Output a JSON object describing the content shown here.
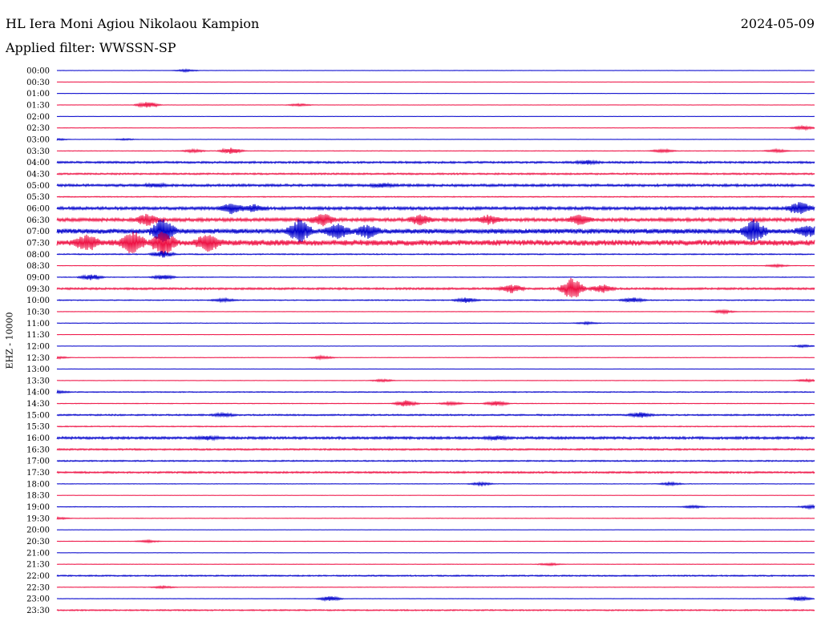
{
  "header": {
    "station": "HL Iera Moni Agiou Nikolaou Kampion",
    "date": "2024-05-09",
    "filter": "Applied filter: WWSSN-SP"
  },
  "chart_data": {
    "type": "line",
    "ylabel": "EHZ - 10000",
    "colors": {
      "even": "#0000cc",
      "odd": "#ee1144"
    },
    "rows": [
      {
        "label": "00:00",
        "noise": 0.2,
        "events": [
          [
            0.17,
            1.5
          ]
        ]
      },
      {
        "label": "00:30",
        "noise": 0.2,
        "events": []
      },
      {
        "label": "01:00",
        "noise": 0.2,
        "events": []
      },
      {
        "label": "01:30",
        "noise": 0.25,
        "events": [
          [
            0.12,
            4
          ],
          [
            0.32,
            1.5
          ]
        ]
      },
      {
        "label": "02:00",
        "noise": 0.2,
        "events": []
      },
      {
        "label": "02:30",
        "noise": 0.25,
        "events": [
          [
            0.985,
            2.5
          ]
        ]
      },
      {
        "label": "03:00",
        "noise": 0.2,
        "events": [
          [
            0.0,
            1.2
          ],
          [
            0.09,
            1
          ]
        ]
      },
      {
        "label": "03:30",
        "noise": 0.35,
        "events": [
          [
            0.23,
            4
          ],
          [
            0.18,
            2
          ],
          [
            0.8,
            2
          ],
          [
            0.95,
            2
          ]
        ]
      },
      {
        "label": "04:00",
        "noise": 1.2,
        "events": [
          [
            0.7,
            2
          ]
        ]
      },
      {
        "label": "04:30",
        "noise": 1.0,
        "events": []
      },
      {
        "label": "05:00",
        "noise": 1.5,
        "events": [
          [
            0.43,
            2
          ],
          [
            0.13,
            2
          ]
        ]
      },
      {
        "label": "05:30",
        "noise": 0.6,
        "events": []
      },
      {
        "label": "06:00",
        "noise": 1.8,
        "events": [
          [
            0.23,
            6
          ],
          [
            0.26,
            4
          ],
          [
            0.98,
            8
          ]
        ]
      },
      {
        "label": "06:30",
        "noise": 2.0,
        "events": [
          [
            0.12,
            7
          ],
          [
            0.35,
            8
          ],
          [
            0.48,
            6
          ],
          [
            0.69,
            6
          ],
          [
            0.57,
            5
          ]
        ]
      },
      {
        "label": "07:00",
        "noise": 3.0,
        "events": [
          [
            0.14,
            16
          ],
          [
            0.32,
            14
          ],
          [
            0.37,
            9
          ],
          [
            0.41,
            8
          ],
          [
            0.92,
            14
          ],
          [
            0.99,
            6
          ]
        ]
      },
      {
        "label": "07:30",
        "noise": 3.5,
        "events": [
          [
            0.04,
            9
          ],
          [
            0.1,
            14
          ],
          [
            0.14,
            16
          ],
          [
            0.2,
            10
          ]
        ]
      },
      {
        "label": "08:00",
        "noise": 0.7,
        "events": [
          [
            0.14,
            4
          ]
        ]
      },
      {
        "label": "08:30",
        "noise": 0.3,
        "events": [
          [
            0.95,
            1.5
          ]
        ]
      },
      {
        "label": "09:00",
        "noise": 0.4,
        "events": [
          [
            0.045,
            4
          ],
          [
            0.14,
            3
          ]
        ]
      },
      {
        "label": "09:30",
        "noise": 1.2,
        "events": [
          [
            0.6,
            5
          ],
          [
            0.68,
            14
          ],
          [
            0.72,
            5
          ]
        ]
      },
      {
        "label": "10:00",
        "noise": 0.6,
        "events": [
          [
            0.54,
            3
          ],
          [
            0.76,
            3
          ],
          [
            0.22,
            2
          ]
        ]
      },
      {
        "label": "10:30",
        "noise": 0.3,
        "events": [
          [
            0.88,
            2
          ]
        ]
      },
      {
        "label": "11:00",
        "noise": 0.3,
        "events": [
          [
            0.7,
            1.5
          ]
        ]
      },
      {
        "label": "11:30",
        "noise": 0.2,
        "events": []
      },
      {
        "label": "12:00",
        "noise": 0.2,
        "events": [
          [
            0.985,
            1.5
          ]
        ]
      },
      {
        "label": "12:30",
        "noise": 0.3,
        "events": [
          [
            0.35,
            2
          ],
          [
            0.0,
            1.5
          ]
        ]
      },
      {
        "label": "13:00",
        "noise": 0.2,
        "events": []
      },
      {
        "label": "13:30",
        "noise": 0.3,
        "events": [
          [
            0.43,
            1.5
          ],
          [
            0.99,
            1.5
          ]
        ]
      },
      {
        "label": "14:00",
        "noise": 0.6,
        "events": [
          [
            0.0,
            1.5
          ]
        ]
      },
      {
        "label": "14:30",
        "noise": 0.4,
        "events": [
          [
            0.46,
            4
          ],
          [
            0.52,
            2
          ],
          [
            0.58,
            3
          ]
        ]
      },
      {
        "label": "15:00",
        "noise": 0.9,
        "events": [
          [
            0.22,
            2
          ],
          [
            0.77,
            3
          ]
        ]
      },
      {
        "label": "15:30",
        "noise": 0.6,
        "events": []
      },
      {
        "label": "16:00",
        "noise": 1.5,
        "events": [
          [
            0.2,
            2
          ],
          [
            0.58,
            2
          ]
        ]
      },
      {
        "label": "16:30",
        "noise": 1.0,
        "events": []
      },
      {
        "label": "17:00",
        "noise": 0.8,
        "events": []
      },
      {
        "label": "17:30",
        "noise": 1.1,
        "events": []
      },
      {
        "label": "18:00",
        "noise": 0.3,
        "events": [
          [
            0.56,
            2
          ],
          [
            0.81,
            2
          ]
        ]
      },
      {
        "label": "18:30",
        "noise": 0.2,
        "events": []
      },
      {
        "label": "19:00",
        "noise": 0.4,
        "events": [
          [
            0.84,
            1.5
          ],
          [
            0.995,
            2
          ]
        ]
      },
      {
        "label": "19:30",
        "noise": 0.3,
        "events": [
          [
            0.0,
            1.5
          ]
        ]
      },
      {
        "label": "20:00",
        "noise": 0.2,
        "events": []
      },
      {
        "label": "20:30",
        "noise": 0.3,
        "events": [
          [
            0.12,
            1.5
          ]
        ]
      },
      {
        "label": "21:00",
        "noise": 0.2,
        "events": []
      },
      {
        "label": "21:30",
        "noise": 0.3,
        "events": [
          [
            0.65,
            1.5
          ]
        ]
      },
      {
        "label": "22:00",
        "noise": 0.8,
        "events": []
      },
      {
        "label": "22:30",
        "noise": 0.3,
        "events": [
          [
            0.14,
            1.5
          ]
        ]
      },
      {
        "label": "23:00",
        "noise": 0.3,
        "events": [
          [
            0.36,
            3
          ],
          [
            0.98,
            3
          ]
        ]
      },
      {
        "label": "23:30",
        "noise": 0.8,
        "events": []
      }
    ]
  }
}
